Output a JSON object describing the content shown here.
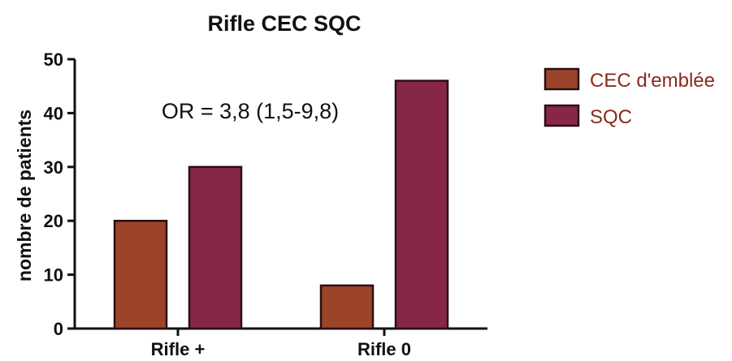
{
  "chart_data": {
    "type": "bar",
    "title": "Rifle CEC SQC",
    "ylabel": "nombre de patients",
    "xlabel": "",
    "categories": [
      "Rifle +",
      "Rifle 0"
    ],
    "series": [
      {
        "name": "CEC d'emblée",
        "values": [
          20,
          8
        ],
        "color": "#9b4429"
      },
      {
        "name": "SQC",
        "values": [
          30,
          46
        ],
        "color": "#862748"
      }
    ],
    "ylim": [
      0,
      50
    ],
    "yticks": [
      0,
      10,
      20,
      30,
      40,
      50
    ],
    "annotation": "OR = 3,8 (1,5-9,8)",
    "legend": {
      "position": "right",
      "text_color": "#8a2a1c"
    },
    "grid": false
  }
}
